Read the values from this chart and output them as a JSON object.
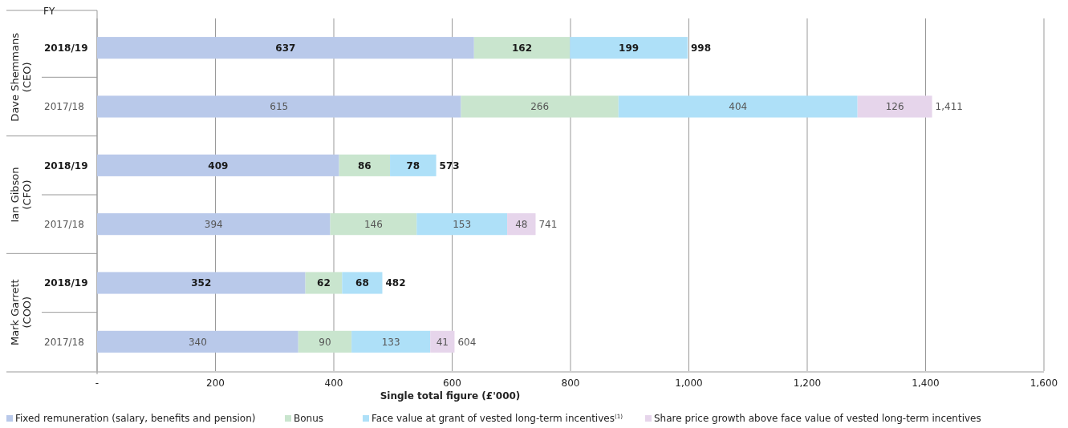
{
  "chart_data": {
    "type": "bar",
    "orientation": "horizontal",
    "stacked": true,
    "ylabel": "FY",
    "xlabel": "Single total figure (£'000)",
    "categories": [
      "2018/19",
      "2017/18",
      "2018/19",
      "2017/18",
      "2018/19",
      "2017/18"
    ],
    "annotations": [
      "Dave Shemmans (CEO)",
      "Ian Gibson (CFO)",
      "Mark Garrett (COO)"
    ],
    "series": [
      {
        "name": "Fixed remuneration (salary, benefits and pension)",
        "color": "#b9c9ea",
        "values": [
          637,
          615,
          409,
          394,
          352,
          340
        ]
      },
      {
        "name": "Bonus",
        "color": "#c9e5ce",
        "values": [
          162,
          266,
          86,
          146,
          62,
          90
        ]
      },
      {
        "name": "Face value at grant of vested long-term incentives$^{(1)}$",
        "color": "#aee0f8",
        "values": [
          199,
          404,
          78,
          153,
          68,
          133
        ]
      },
      {
        "name": "Share price growth above face value of vested long-term incentives",
        "color": "#e6d5eb",
        "values": [
          null,
          126,
          null,
          48,
          null,
          41
        ]
      }
    ],
    "totals": [
      "998",
      "1,411",
      "573",
      "741",
      "482",
      "604"
    ],
    "data_labels": true,
    "xlim": [
      0,
      1600
    ],
    "xticks": [
      {
        "value": 0,
        "label": "-"
      },
      {
        "value": 200,
        "label": "200"
      },
      {
        "value": 400,
        "label": "400"
      },
      {
        "value": 600,
        "label": "600"
      },
      {
        "value": 800,
        "label": "800"
      },
      {
        "value": 1000,
        "label": "1,000"
      },
      {
        "value": 1200,
        "label": "1,200"
      },
      {
        "value": 1400,
        "label": "1,400"
      },
      {
        "value": 1600,
        "label": "1,600"
      }
    ],
    "grid": "x",
    "legend": "bottom"
  }
}
